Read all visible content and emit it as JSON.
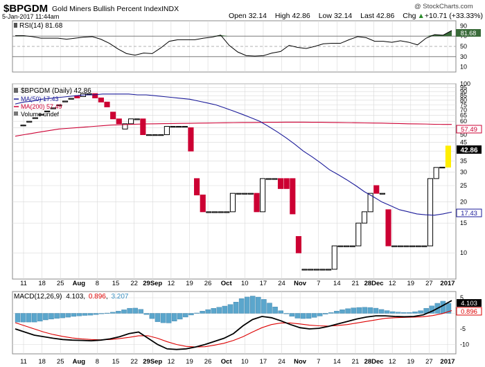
{
  "header": {
    "symbol": "$BPGDM",
    "name": "Gold Miners Bullish Percent Index",
    "exchange": "INDX",
    "datetime": "5-Jan-2017 11:44am",
    "watermark": "@ StockCharts.com",
    "quote": {
      "open_label": "Open",
      "open": "32.14",
      "high_label": "High",
      "high": "42.86",
      "low_label": "Low",
      "low": "32.14",
      "last_label": "Last",
      "last": "42.86",
      "chg_label": "Chg",
      "chg": "+10.71 (+33.33%)",
      "chg_arrow": "▲"
    }
  },
  "colors": {
    "up_candle": "#000000",
    "down_candle": "#cc0033",
    "last_candle": "#ffee00",
    "ma50": "#1a1a99",
    "ma200": "#cc0033",
    "rsi_over": "#3a6b3a",
    "rsi_under": "#8a5a52",
    "macd_line": "#000000",
    "macd_signal": "#dd0000",
    "macd_hist": "#5ba6cc",
    "grid": "#d8d8d8"
  },
  "chart_data": [
    {
      "type": "line",
      "panel": "rsi",
      "legend": "RSI(14) 81.68",
      "ylim": [
        0,
        100
      ],
      "yticks": [
        10,
        30,
        50,
        70,
        90
      ],
      "reference_lines": [
        30,
        50,
        70
      ],
      "last_value": "81.68",
      "values": [
        71,
        71,
        69,
        66,
        66,
        66,
        64,
        66,
        68,
        69,
        64,
        56,
        45,
        36,
        33,
        37,
        36,
        47,
        60,
        63,
        63,
        63,
        66,
        68,
        72,
        52,
        39,
        32,
        31,
        32,
        37,
        40,
        52,
        48,
        46,
        50,
        55,
        56,
        56,
        63,
        69,
        67,
        60,
        60,
        58,
        61,
        58,
        53,
        66,
        73,
        72,
        81
      ]
    },
    {
      "type": "candlestick",
      "panel": "price",
      "legend": [
        "$BPGDM (Daily) 42.86",
        "MA(50) 17.43",
        "MA(200) 57.49",
        "Volume undef"
      ],
      "scale": "log",
      "ylim": [
        7,
        100
      ],
      "yticks": [
        10,
        15,
        20,
        25,
        30,
        35,
        40,
        45,
        50,
        55,
        60,
        65,
        70,
        75,
        80,
        85,
        90,
        95,
        100
      ],
      "candles": [
        [
          57,
          57,
          57
        ],
        [
          60,
          60,
          60
        ],
        [
          63,
          63,
          63
        ],
        [
          66,
          66,
          66
        ],
        [
          69,
          69,
          69
        ],
        [
          72,
          72,
          72
        ],
        [
          75,
          75,
          75
        ],
        [
          79,
          79,
          79
        ],
        [
          82,
          82,
          82
        ],
        [
          85,
          85,
          82.5
        ],
        [
          84,
          84,
          87.5
        ],
        [
          87.5,
          87.5,
          87.5
        ],
        [
          87.5,
          87.5,
          82.5
        ],
        [
          82.5,
          82.5,
          78
        ],
        [
          78,
          78,
          73
        ],
        [
          68,
          68,
          62
        ],
        [
          62,
          62,
          58
        ],
        [
          54,
          54,
          58
        ],
        [
          58,
          58,
          62
        ],
        [
          62,
          62,
          62
        ],
        [
          62,
          62,
          50
        ],
        [
          50,
          50,
          50
        ],
        [
          50,
          50,
          50
        ],
        [
          50,
          50,
          50
        ],
        [
          50,
          50,
          56
        ],
        [
          56,
          56,
          56
        ],
        [
          56,
          56,
          56
        ],
        [
          56,
          56,
          56
        ],
        [
          55,
          55,
          40
        ],
        [
          27.5,
          27.5,
          22
        ],
        [
          22,
          22,
          17.5
        ],
        [
          17.5,
          17.5,
          17.5
        ],
        [
          17.5,
          17.5,
          17.5
        ],
        [
          17.5,
          17.5,
          17.5
        ],
        [
          17.5,
          17.5,
          17.5
        ],
        [
          17.5,
          17.5,
          22.5
        ],
        [
          22.5,
          22.5,
          22.5
        ],
        [
          22.5,
          22.5,
          22.5
        ],
        [
          22.5,
          22.5,
          22.5
        ],
        [
          22.5,
          22.5,
          17.5
        ],
        [
          17.5,
          17.5,
          27.5
        ],
        [
          27.5,
          27.5,
          27.5
        ],
        [
          27.5,
          27.5,
          27.5
        ],
        [
          27.5,
          27.5,
          24
        ],
        [
          27.5,
          27.5,
          24
        ],
        [
          27.5,
          27.5,
          17
        ],
        [
          12.5,
          12.5,
          10
        ],
        [
          8,
          8,
          8
        ],
        [
          8,
          8,
          8
        ],
        [
          8,
          8,
          8
        ],
        [
          8,
          8,
          8
        ],
        [
          8,
          8,
          8
        ],
        [
          8,
          8,
          11
        ],
        [
          11,
          11,
          11
        ],
        [
          11,
          11,
          11
        ],
        [
          11,
          11,
          11
        ],
        [
          11,
          11,
          15
        ],
        [
          15,
          15,
          17.5
        ],
        [
          17.5,
          17.5,
          22.5
        ],
        [
          25,
          25,
          22.5
        ],
        [
          22.5,
          22.5,
          22.5
        ],
        [
          18,
          18,
          11
        ],
        [
          11,
          11,
          11
        ],
        [
          11,
          11,
          11
        ],
        [
          11,
          11,
          11
        ],
        [
          11,
          11,
          11
        ],
        [
          11,
          11,
          11
        ],
        [
          11,
          11,
          11
        ],
        [
          11,
          11,
          27.5
        ],
        [
          27.5,
          27.5,
          32
        ],
        [
          32,
          32,
          32.14
        ],
        [
          32.14,
          32.14,
          42.86
        ]
      ],
      "ma50": [
        76,
        78,
        79,
        81,
        82,
        83,
        84,
        85,
        86,
        86,
        87,
        87,
        87,
        87,
        86,
        86,
        85,
        84,
        83,
        82,
        81,
        79,
        77,
        75,
        72,
        69,
        66,
        63,
        60,
        56,
        52,
        48,
        44,
        40,
        37,
        34,
        31,
        29,
        27,
        25,
        23,
        21.5,
        20,
        19,
        18,
        17.5,
        17,
        16.8,
        16.7,
        17,
        17.43
      ],
      "ma200": [
        49,
        50,
        51,
        52,
        53,
        54,
        54.5,
        55,
        55.5,
        56,
        56.5,
        57,
        57.2,
        57.5,
        57.7,
        57.9,
        58,
        58.1,
        58.2,
        58.3,
        58.4,
        58.5,
        58.6,
        58.7,
        58.8,
        58.9,
        59,
        59,
        59.1,
        59.2,
        59.2,
        59.3,
        59.3,
        59.3,
        59.2,
        59.2,
        59.1,
        59,
        58.9,
        58.8,
        58.7,
        58.6,
        58.5,
        58.3,
        58.2,
        58,
        57.9,
        57.8,
        57.6,
        57.5,
        57.49
      ],
      "last_labels": {
        "last": "42.86",
        "ma200": "57.49",
        "ma50": "17.43"
      }
    },
    {
      "type": "line",
      "panel": "macd",
      "legend_name": "MACD(12,26,9)",
      "legend_values": [
        "4.103",
        "0.896",
        "3.207"
      ],
      "ylim": [
        -13,
        7
      ],
      "yticks": [
        -10,
        -5,
        0,
        5
      ],
      "last_labels": [
        "4.103",
        "0.896"
      ],
      "macd": [
        -5,
        -6,
        -7,
        -7.5,
        -8,
        -8.4,
        -8.6,
        -8.7,
        -8.8,
        -8.6,
        -8.2,
        -7.5,
        -6.5,
        -6,
        -8,
        -10,
        -11.4,
        -11.6,
        -11.4,
        -10.8,
        -10,
        -9,
        -8,
        -6.5,
        -4,
        -2,
        -1,
        -1.4,
        -2.4,
        -3.6,
        -4.6,
        -5,
        -4.8,
        -4.2,
        -3.4,
        -2.6,
        -1.8,
        -1.2,
        -0.8,
        -0.8,
        -1,
        -1.1,
        -1,
        -0.5,
        0.8,
        2.4,
        4.103
      ],
      "signal": [
        -3,
        -4,
        -5,
        -6,
        -6.8,
        -7.4,
        -7.9,
        -8.2,
        -8.4,
        -8.5,
        -8.4,
        -8.1,
        -7.7,
        -7.2,
        -7.2,
        -8,
        -9.1,
        -10,
        -10.6,
        -10.8,
        -10.7,
        -10.2,
        -9.6,
        -8.7,
        -7.5,
        -6,
        -4.6,
        -3.6,
        -3.1,
        -3.1,
        -3.4,
        -3.8,
        -4,
        -4.1,
        -3.9,
        -3.6,
        -3.1,
        -2.6,
        -2.1,
        -1.6,
        -1.4,
        -1.3,
        -1.2,
        -1.1,
        -0.7,
        -0.1,
        0.896
      ],
      "hist_bars": 78,
      "hist_peak_value": 3.207
    }
  ],
  "xaxis": {
    "ticks": [
      {
        "label": "11",
        "bold": false
      },
      {
        "label": "18",
        "bold": false
      },
      {
        "label": "25",
        "bold": false
      },
      {
        "label": "Aug",
        "bold": true
      },
      {
        "label": "8",
        "bold": false
      },
      {
        "label": "15",
        "bold": false
      },
      {
        "label": "22",
        "bold": false
      },
      {
        "label": "29Sep",
        "bold": true
      },
      {
        "label": "12",
        "bold": false
      },
      {
        "label": "19",
        "bold": false
      },
      {
        "label": "26",
        "bold": false
      },
      {
        "label": "Oct",
        "bold": true
      },
      {
        "label": "10",
        "bold": false
      },
      {
        "label": "17",
        "bold": false
      },
      {
        "label": "24",
        "bold": false
      },
      {
        "label": "Nov",
        "bold": true
      },
      {
        "label": "7",
        "bold": false
      },
      {
        "label": "14",
        "bold": false
      },
      {
        "label": "21",
        "bold": false
      },
      {
        "label": "28Dec",
        "bold": true
      },
      {
        "label": "12",
        "bold": false
      },
      {
        "label": "19",
        "bold": false
      },
      {
        "label": "27",
        "bold": false
      },
      {
        "label": "2017",
        "bold": true
      }
    ]
  }
}
